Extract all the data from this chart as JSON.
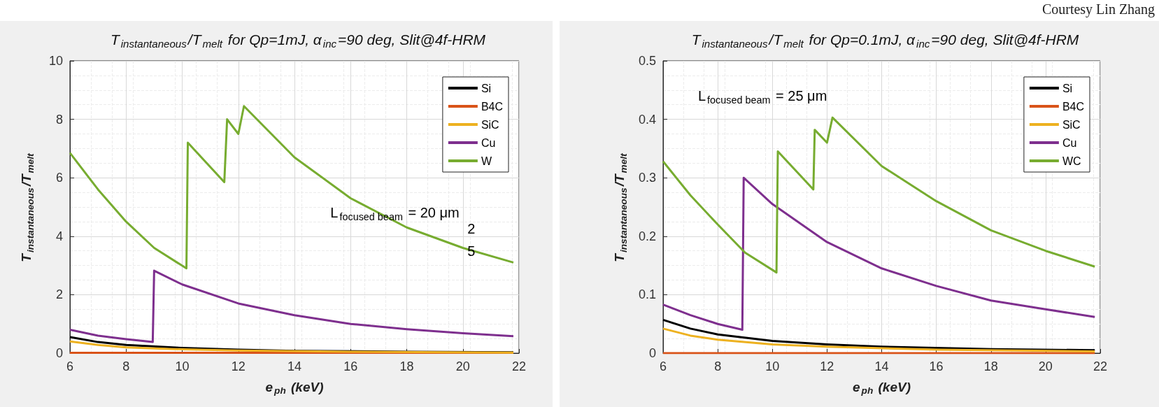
{
  "chart_data": [
    {
      "type": "line",
      "title": "T$_{instantaneous}$/T$_{melt}$ for Qp=1mJ, α$_{inc}$=90 deg, Slit@4f-HRM",
      "xlabel": "e$_{ph}$ (keV)",
      "ylabel": "T$_{instantaneous}$/T$_{melt}$",
      "xlim": [
        6,
        22
      ],
      "xticks": [
        6,
        8,
        10,
        12,
        14,
        16,
        18,
        20,
        22
      ],
      "ylim": [
        0,
        10
      ],
      "yticks": [
        0,
        2,
        4,
        6,
        8,
        10
      ],
      "grid": true,
      "legend": "top right",
      "marker": "none",
      "line_style": "solid",
      "annotations": [
        "L$_{focused beam}$ = 20 μm",
        "2",
        "5"
      ],
      "series": [
        {
          "name": "Si",
          "color": "#000000",
          "x": [
            6,
            7,
            8,
            10,
            12,
            14,
            18,
            21.8
          ],
          "values": [
            0.55,
            0.38,
            0.28,
            0.18,
            0.12,
            0.08,
            0.05,
            0.03
          ]
        },
        {
          "name": "B4C",
          "color": "#d95319",
          "x": [
            6,
            21.8
          ],
          "values": [
            0.01,
            0.01
          ]
        },
        {
          "name": "SiC",
          "color": "#edb120",
          "x": [
            6,
            7,
            8,
            10,
            12,
            16,
            21.8
          ],
          "values": [
            0.4,
            0.28,
            0.2,
            0.13,
            0.09,
            0.05,
            0.02
          ]
        },
        {
          "name": "Cu",
          "color": "#7e2f8e",
          "x": [
            6,
            7,
            8,
            8.95,
            9,
            10,
            12,
            14,
            16,
            18,
            20,
            21.8
          ],
          "values": [
            0.8,
            0.6,
            0.48,
            0.38,
            2.82,
            2.35,
            1.7,
            1.3,
            1.0,
            0.82,
            0.68,
            0.58
          ]
        },
        {
          "name": "W",
          "color": "#77ac30",
          "x": [
            6,
            7,
            8,
            9,
            10.15,
            10.2,
            11.5,
            11.6,
            12.0,
            12.2,
            14,
            16,
            18,
            20,
            21.8
          ],
          "values": [
            6.85,
            5.6,
            4.5,
            3.6,
            2.9,
            7.2,
            5.85,
            8.0,
            7.5,
            8.45,
            6.7,
            5.3,
            4.3,
            3.6,
            3.1
          ]
        }
      ]
    },
    {
      "type": "line",
      "title": "T$_{instantaneous}$/T$_{melt}$ for Qp=0.1mJ, α$_{inc}$=90 deg, Slit@4f-HRM",
      "xlabel": "e$_{ph}$ (keV)",
      "ylabel": "T$_{instantaneous}$/T$_{melt}$",
      "xlim": [
        6,
        22
      ],
      "xticks": [
        6,
        8,
        10,
        12,
        14,
        16,
        18,
        20,
        22
      ],
      "ylim": [
        0,
        0.5
      ],
      "yticks": [
        0,
        0.1,
        0.2,
        0.3,
        0.4,
        0.5
      ],
      "grid": true,
      "legend": "top right",
      "marker": "none",
      "line_style": "solid",
      "annotations": [
        "L$_{focused beam}$ = 25 μm",
        "Courtesy Lin Zhang"
      ],
      "series": [
        {
          "name": "Si",
          "color": "#000000",
          "x": [
            6,
            7,
            8,
            10,
            12,
            14,
            18,
            21.8
          ],
          "values": [
            0.057,
            0.042,
            0.032,
            0.021,
            0.015,
            0.011,
            0.007,
            0.005
          ]
        },
        {
          "name": "B4C",
          "color": "#d95319",
          "x": [
            6,
            21.8
          ],
          "values": [
            0,
            0
          ]
        },
        {
          "name": "SiC",
          "color": "#edb120",
          "x": [
            6,
            7,
            8,
            10,
            12,
            16,
            21.8
          ],
          "values": [
            0.042,
            0.03,
            0.023,
            0.015,
            0.011,
            0.006,
            0.003
          ]
        },
        {
          "name": "Cu",
          "color": "#7e2f8e",
          "x": [
            6,
            7,
            8,
            8.9,
            8.95,
            10,
            12,
            14,
            16,
            18,
            20,
            21.8
          ],
          "values": [
            0.083,
            0.065,
            0.05,
            0.04,
            0.3,
            0.255,
            0.19,
            0.145,
            0.115,
            0.09,
            0.075,
            0.062
          ]
        },
        {
          "name": "WC",
          "color": "#77ac30",
          "x": [
            6,
            7,
            8,
            9,
            10.15,
            10.2,
            11.5,
            11.55,
            12.0,
            12.2,
            14,
            16,
            18,
            20,
            21.8
          ],
          "values": [
            0.328,
            0.27,
            0.22,
            0.172,
            0.138,
            0.345,
            0.28,
            0.382,
            0.36,
            0.403,
            0.32,
            0.26,
            0.21,
            0.175,
            0.148
          ]
        }
      ]
    }
  ]
}
